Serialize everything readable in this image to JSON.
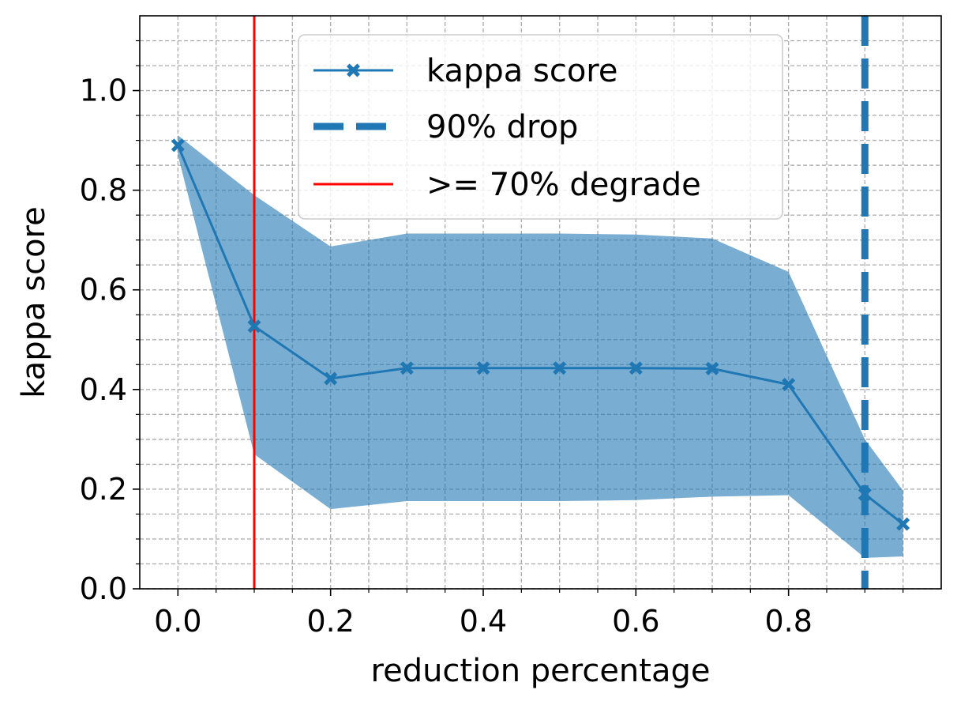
{
  "chart_data": {
    "type": "line",
    "xlabel": "reduction percentage",
    "ylabel": "kappa score",
    "xlim": [
      -0.05,
      1.0
    ],
    "ylim": [
      0.0,
      1.15
    ],
    "x_major_ticks": [
      0.0,
      0.2,
      0.4,
      0.6,
      0.8
    ],
    "x_tick_labels": [
      "0.0",
      "0.2",
      "0.4",
      "0.6",
      "0.8"
    ],
    "x_minor_ticks": [
      0.05,
      0.1,
      0.15,
      0.25,
      0.3,
      0.35,
      0.45,
      0.5,
      0.55,
      0.65,
      0.7,
      0.75,
      0.85,
      0.9,
      0.95
    ],
    "y_major_ticks": [
      0.0,
      0.2,
      0.4,
      0.6,
      0.8,
      1.0
    ],
    "y_tick_labels": [
      "0.0",
      "0.2",
      "0.4",
      "0.6",
      "0.8",
      "1.0"
    ],
    "y_minor_ticks": [
      0.05,
      0.1,
      0.15,
      0.25,
      0.3,
      0.35,
      0.45,
      0.5,
      0.55,
      0.65,
      0.7,
      0.75,
      0.85,
      0.9,
      0.95,
      1.05,
      1.1
    ],
    "grid": true,
    "series": [
      {
        "name": "kappa score",
        "color": "#1f77b4",
        "marker": "X",
        "x": [
          0.0,
          0.1,
          0.2,
          0.3,
          0.4,
          0.5,
          0.6,
          0.7,
          0.8,
          0.9,
          0.95
        ],
        "values": [
          0.89,
          0.527,
          0.422,
          0.443,
          0.443,
          0.443,
          0.443,
          0.442,
          0.41,
          0.19,
          0.13
        ]
      }
    ],
    "band": {
      "color": "#1f77b4",
      "opacity": 0.6,
      "x": [
        0.0,
        0.1,
        0.2,
        0.3,
        0.4,
        0.5,
        0.6,
        0.7,
        0.8,
        0.9,
        0.95
      ],
      "upper": [
        0.91,
        0.79,
        0.687,
        0.713,
        0.713,
        0.713,
        0.711,
        0.703,
        0.636,
        0.3,
        0.197
      ],
      "lower": [
        0.87,
        0.27,
        0.16,
        0.176,
        0.176,
        0.176,
        0.178,
        0.185,
        0.188,
        0.062,
        0.065
      ]
    },
    "vlines": [
      {
        "name": "90% drop",
        "x": 0.9,
        "color": "#1f77b4",
        "style": "dashed"
      },
      {
        "name": ">= 70% degrade",
        "x": 0.1,
        "color": "#ff0000",
        "style": "solid"
      }
    ],
    "legend": {
      "placement": "top-center",
      "entries": [
        "kappa score",
        "90% drop",
        ">= 70% degrade"
      ]
    }
  }
}
